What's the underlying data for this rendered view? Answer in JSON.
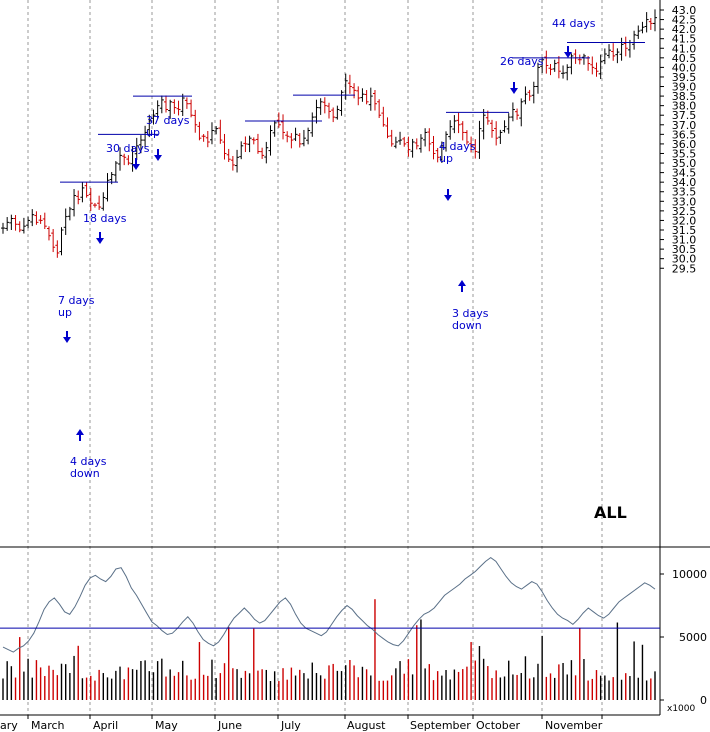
{
  "chart_data": [
    {
      "type": "ohlc",
      "symbol": "ALL",
      "x_labels": [
        "ary",
        "March",
        "April",
        "May",
        "June",
        "July",
        "August",
        "September",
        "October",
        "November"
      ],
      "y_ticks": [
        "29.5",
        "30.0",
        "30.5",
        "31.0",
        "31.5",
        "32.0",
        "32.5",
        "33.0",
        "33.5",
        "34.0",
        "34.5",
        "35.0",
        "35.5",
        "36.0",
        "36.5",
        "37.0",
        "37.5",
        "38.0",
        "38.5",
        "39.0",
        "39.5",
        "40.0",
        "40.5",
        "41.0",
        "41.5",
        "42.0",
        "42.5",
        "43.0"
      ],
      "ylim": [
        29.2,
        43.2
      ],
      "up_color": "#000000",
      "down_color": "#cc0000",
      "close_series": [
        31.6,
        31.9,
        32.1,
        31.8,
        31.5,
        31.7,
        32.0,
        32.3,
        31.9,
        32.0,
        31.7,
        31.2,
        30.6,
        30.3,
        31.5,
        32.2,
        32.6,
        33.3,
        33.1,
        33.7,
        33.3,
        32.9,
        32.8,
        32.7,
        33.2,
        34.1,
        34.4,
        35.0,
        35.4,
        35.3,
        35.0,
        35.6,
        35.9,
        36.2,
        36.6,
        37.2,
        37.5,
        38.0,
        38.3,
        37.8,
        38.2,
        37.9,
        37.8,
        38.4,
        38.1,
        37.5,
        37.0,
        36.3,
        36.4,
        36.1,
        36.7,
        36.8,
        36.2,
        35.5,
        35.2,
        34.9,
        35.3,
        35.9,
        36.0,
        36.3,
        36.2,
        35.6,
        35.4,
        35.8,
        36.7,
        37.1,
        37.0,
        36.6,
        36.4,
        36.2,
        36.5,
        36.0,
        36.3,
        36.7,
        37.4,
        37.9,
        38.2,
        38.0,
        37.7,
        37.4,
        37.8,
        38.7,
        39.3,
        39.0,
        38.8,
        38.4,
        38.6,
        38.2,
        38.5,
        38.1,
        37.5,
        37.0,
        36.4,
        36.0,
        36.1,
        36.2,
        36.0,
        35.7,
        36.1,
        35.9,
        36.3,
        36.6,
        36.0,
        35.5,
        35.3,
        35.9,
        36.5,
        36.9,
        37.2,
        37.0,
        36.6,
        36.1,
        35.9,
        35.6,
        36.8,
        37.5,
        37.2,
        36.7,
        36.3,
        36.6,
        36.9,
        37.4,
        37.8,
        37.5,
        38.2,
        38.6,
        38.5,
        39.0,
        40.0,
        40.4,
        40.1,
        39.9,
        40.2,
        39.8,
        39.7,
        40.0,
        40.6,
        40.5,
        40.4,
        40.6,
        40.2,
        40.0,
        39.8,
        40.3,
        40.7,
        40.9,
        40.6,
        40.8,
        41.2,
        41.0,
        41.3,
        41.7,
        41.9,
        42.1,
        42.5,
        42.3,
        42.6
      ],
      "horizontal_lines": [
        {
          "price": 34.0,
          "x_start": 60,
          "x_end": 118
        },
        {
          "price": 36.5,
          "x_start": 98,
          "x_end": 158
        },
        {
          "price": 38.5,
          "x_start": 133,
          "x_end": 192
        },
        {
          "price": 37.2,
          "x_start": 245,
          "x_end": 322
        },
        {
          "price": 38.55,
          "x_start": 293,
          "x_end": 355
        },
        {
          "price": 37.65,
          "x_start": 446,
          "x_end": 509
        },
        {
          "price": 40.5,
          "x_start": 512,
          "x_end": 590
        },
        {
          "price": 41.3,
          "x_start": 567,
          "x_end": 645
        }
      ],
      "annotations": [
        {
          "lines": [
            "7 days",
            "up"
          ],
          "arrow": "down"
        },
        {
          "lines": [
            "4 days",
            "down"
          ],
          "arrow": "up"
        },
        {
          "lines": [
            "18 days"
          ],
          "arrow": "down"
        },
        {
          "lines": [
            "30 days"
          ],
          "arrow": "down"
        },
        {
          "lines": [
            "37 days",
            "up"
          ],
          "arrow": "down"
        },
        {
          "lines": [
            "4 days",
            "up"
          ],
          "arrow": "down"
        },
        {
          "lines": [
            "3 days",
            "down"
          ],
          "arrow": "up"
        },
        {
          "lines": [
            "26 days"
          ],
          "arrow": "down"
        },
        {
          "lines": [
            "44 days"
          ],
          "arrow": "down"
        }
      ]
    },
    {
      "type": "bar_with_line",
      "y_ticks": [
        "0",
        "5000",
        "10000"
      ],
      "ylim": [
        0,
        12000
      ],
      "unit_label": "x1000",
      "reference_line": 5700,
      "volume_average_series": [
        4200,
        4000,
        3800,
        4100,
        4300,
        4700,
        5300,
        6200,
        7200,
        7800,
        8100,
        7600,
        7000,
        6800,
        7400,
        8200,
        9100,
        9700,
        9900,
        9600,
        9400,
        9800,
        10400,
        10500,
        9800,
        8900,
        8300,
        7600,
        6900,
        6200,
        5900,
        5500,
        5200,
        5300,
        5700,
        6200,
        6600,
        6100,
        5400,
        4800,
        4500,
        4300,
        4600,
        5200,
        5900,
        6500,
        6900,
        7300,
        6900,
        6400,
        6100,
        6300,
        6800,
        7300,
        7800,
        8100,
        7600,
        6800,
        6100,
        5700,
        5500,
        5300,
        5100,
        5400,
        6000,
        6600,
        7100,
        7500,
        7200,
        6700,
        6300,
        5900,
        5600,
        5200,
        4900,
        4600,
        4400,
        4300,
        4700,
        5300,
        5900,
        6400,
        6800,
        7000,
        7300,
        7800,
        8300,
        8600,
        8900,
        9200,
        9600,
        9900,
        10200,
        10600,
        11000,
        11300,
        11000,
        10400,
        9800,
        9300,
        9000,
        8800,
        9100,
        9400,
        9200,
        8600,
        7900,
        7300,
        6800,
        6500,
        6300,
        6000,
        6400,
        6900,
        7300,
        7000,
        6700,
        6500,
        6800,
        7300,
        7800,
        8100,
        8400,
        8700,
        9000,
        9300,
        9100,
        8800
      ]
    }
  ]
}
